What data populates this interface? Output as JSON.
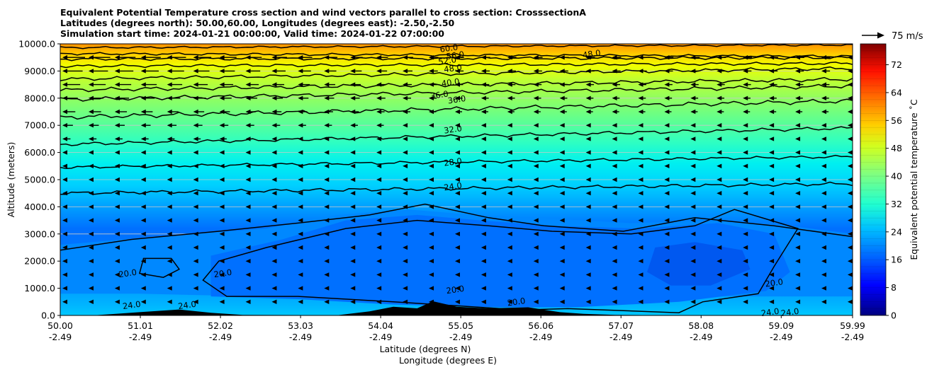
{
  "chart_data": {
    "type": "heatmap",
    "title_lines": [
      "Equivalent Potential Temperature cross section and wind vectors parallel to cross section: CrosssectionA",
      "Latitudes (degrees north): 50.00,60.00, Longitudes (degrees east): -2.50,-2.50",
      "Simulation start time: 2024-01-21 00:00:00, Valid time: 2024-01-22 07:00:00"
    ],
    "ylabel": "Altitude (meters)",
    "xlabel_lat": "Latitude (degrees N)",
    "xlabel_lon": "Longitude (degrees E)",
    "ylim": [
      0,
      10000
    ],
    "yticks": [
      "0.0",
      "1000.0",
      "2000.0",
      "3000.0",
      "4000.0",
      "5000.0",
      "6000.0",
      "7000.0",
      "8000.0",
      "9000.0",
      "10000.0"
    ],
    "xlim": [
      50.0,
      59.99
    ],
    "xticks_lat": [
      "50.00",
      "51.01",
      "52.02",
      "53.03",
      "54.04",
      "55.05",
      "56.06",
      "57.07",
      "58.08",
      "59.09",
      "59.99"
    ],
    "xticks_lon": [
      "-2.49",
      "-2.49",
      "-2.49",
      "-2.49",
      "-2.49",
      "-2.49",
      "-2.49",
      "-2.49",
      "-2.49",
      "-2.49",
      "-2.49"
    ],
    "colorbar": {
      "label": "Equivalent potential temperature ˚C",
      "range": [
        0,
        78
      ],
      "ticks": [
        "0",
        "8",
        "16",
        "24",
        "32",
        "40",
        "48",
        "56",
        "64",
        "72"
      ]
    },
    "quiver_key": "75 m/s",
    "contour_levels": [
      "20.0",
      "24.0",
      "28.0",
      "32.0",
      "36.0",
      "40.0",
      "48.0",
      "52.0",
      "56.0",
      "60.0"
    ],
    "contour_labels": [
      {
        "text": "60.0",
        "x": 54.9,
        "z": 9840
      },
      {
        "text": "56.0",
        "x": 54.98,
        "z": 9580
      },
      {
        "text": "52.0",
        "x": 54.88,
        "z": 9380
      },
      {
        "text": "48.0",
        "x": 54.95,
        "z": 9100
      },
      {
        "text": "40.0",
        "x": 54.92,
        "z": 8580
      },
      {
        "text": "36.0",
        "x": 54.78,
        "z": 8120
      },
      {
        "text": "36.0",
        "x": 55.0,
        "z": 7950
      },
      {
        "text": "48.0",
        "x": 56.7,
        "z": 9630
      },
      {
        "text": "32.0",
        "x": 54.95,
        "z": 6850
      },
      {
        "text": "28.0",
        "x": 54.95,
        "z": 5650
      },
      {
        "text": "24.0",
        "x": 54.95,
        "z": 4750
      },
      {
        "text": "20.0",
        "x": 54.98,
        "z": 950
      },
      {
        "text": "20.0",
        "x": 52.05,
        "z": 1550
      },
      {
        "text": "20.0",
        "x": 50.85,
        "z": 1550
      },
      {
        "text": "24.0",
        "x": 50.9,
        "z": 380
      },
      {
        "text": "24.0",
        "x": 51.6,
        "z": 380
      },
      {
        "text": "20.0",
        "x": 55.75,
        "z": 500
      },
      {
        "text": "20.0",
        "x": 59.0,
        "z": 1200
      },
      {
        "text": "24.0",
        "x": 58.95,
        "z": 120
      },
      {
        "text": "24.0",
        "x": 59.2,
        "z": 120
      }
    ]
  }
}
